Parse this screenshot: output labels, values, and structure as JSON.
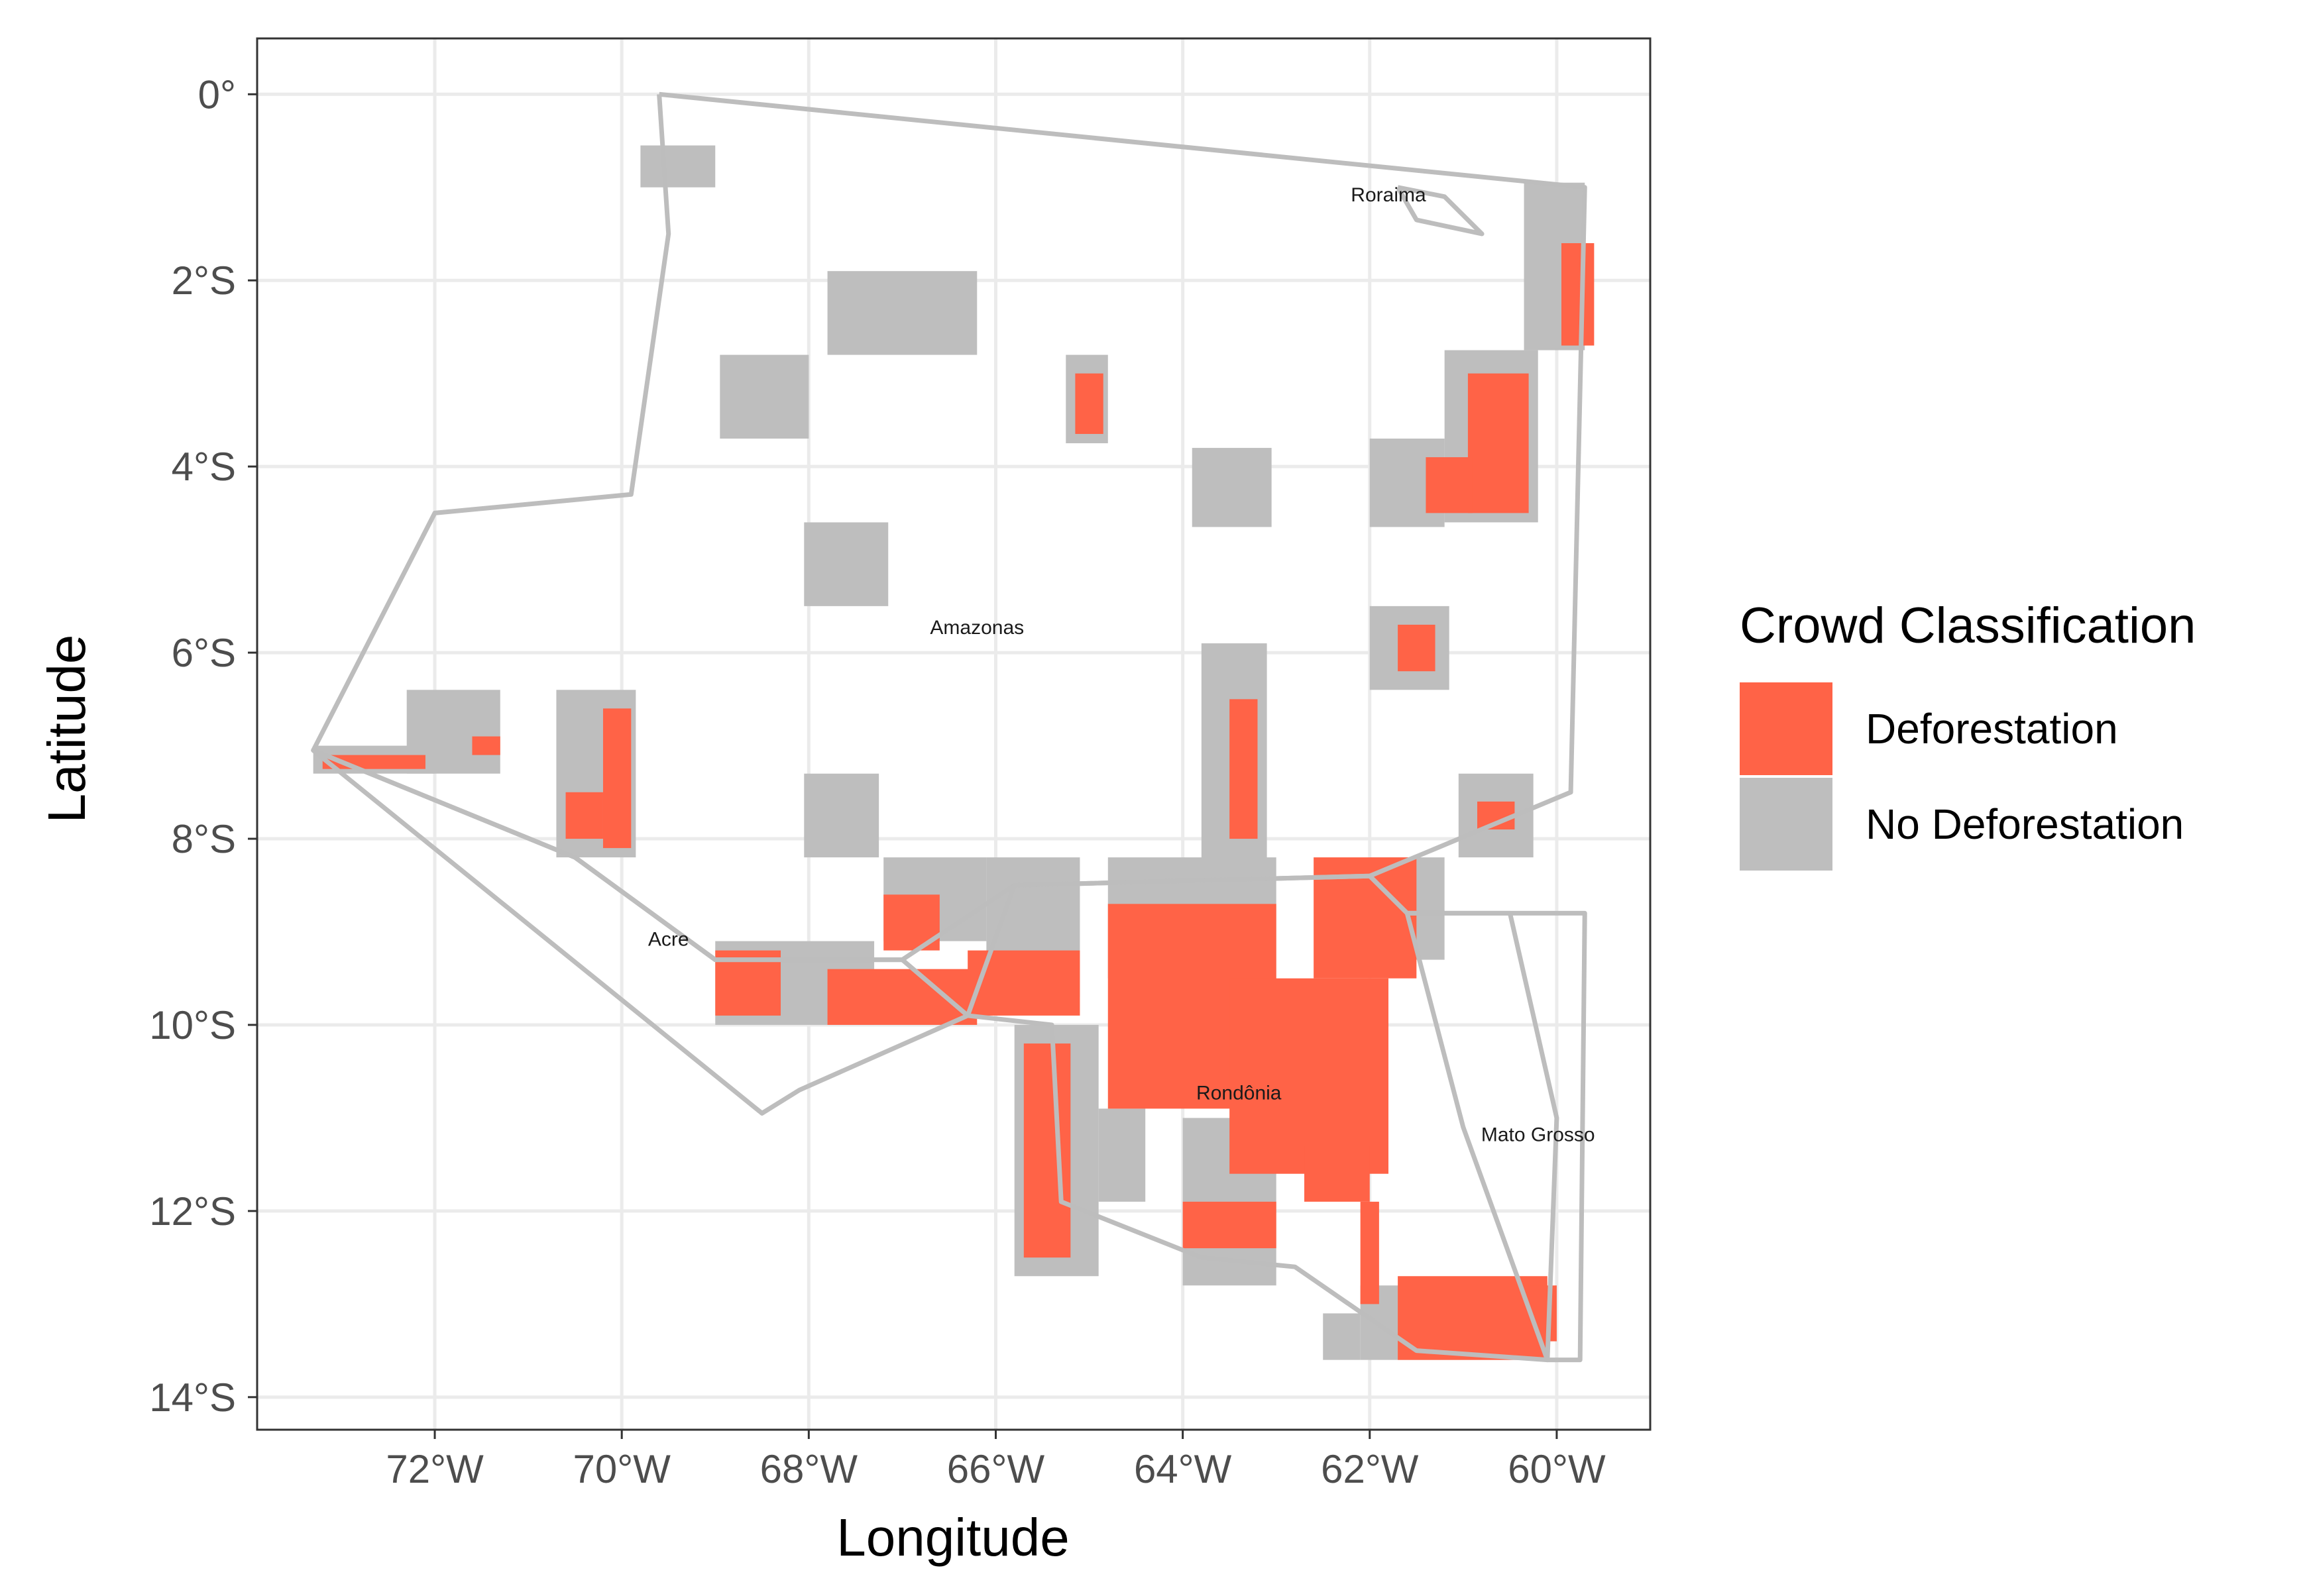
{
  "chart_data": {
    "type": "map",
    "xlabel": "Longitude",
    "ylabel": "Latitude",
    "xlim": [
      -73.9,
      -59.0
    ],
    "ylim": [
      -14.35,
      0.6
    ],
    "x_ticks": [
      {
        "value": -72,
        "label": "72°W"
      },
      {
        "value": -70,
        "label": "70°W"
      },
      {
        "value": -68,
        "label": "68°W"
      },
      {
        "value": -66,
        "label": "66°W"
      },
      {
        "value": -64,
        "label": "64°W"
      },
      {
        "value": -62,
        "label": "62°W"
      },
      {
        "value": -60,
        "label": "60°W"
      }
    ],
    "y_ticks": [
      {
        "value": 0,
        "label": "0°"
      },
      {
        "value": -2,
        "label": "2°S"
      },
      {
        "value": -4,
        "label": "4°S"
      },
      {
        "value": -6,
        "label": "6°S"
      },
      {
        "value": -8,
        "label": "8°S"
      },
      {
        "value": -10,
        "label": "10°S"
      },
      {
        "value": -12,
        "label": "12°S"
      },
      {
        "value": -14,
        "label": "14°S"
      }
    ],
    "grid": true,
    "legend": {
      "title": "Crowd Classification",
      "position": "right",
      "entries": [
        {
          "label": "Deforestation",
          "color": "#ff6347"
        },
        {
          "label": "No Deforestation",
          "color": "#bebebe"
        }
      ]
    },
    "place_labels": [
      {
        "name": "Roraima",
        "lon": -61.8,
        "lat": -1.15
      },
      {
        "name": "Amazonas",
        "lon": -66.2,
        "lat": -5.8
      },
      {
        "name": "Acre",
        "lon": -69.5,
        "lat": -9.15
      },
      {
        "name": "Rondônia",
        "lon": -63.4,
        "lat": -10.8
      },
      {
        "name": "Mato Grosso",
        "lon": -60.2,
        "lat": -11.25
      }
    ],
    "regions": [
      {
        "name": "Amazonas",
        "lon": [
          -69.6,
          -59.7,
          -59.85,
          -62,
          -65.8,
          -67.0,
          -69.0,
          -70.5,
          -73.3,
          -72.0,
          -69.9,
          -69.5,
          -69.6
        ],
        "lat": [
          0.0,
          -1.0,
          -7.5,
          -8.4,
          -8.5,
          -9.3,
          -9.3,
          -8.2,
          -7.05,
          -4.5,
          -4.3,
          -1.5,
          0.0
        ]
      },
      {
        "name": "Acre",
        "lon": [
          -73.3,
          -70.5,
          -69.0,
          -67.0,
          -66.3,
          -67.2,
          -68.1,
          -68.5,
          -73.3
        ],
        "lat": [
          -7.05,
          -8.2,
          -9.3,
          -9.3,
          -9.9,
          -10.3,
          -10.7,
          -10.95,
          -7.05
        ]
      },
      {
        "name": "Rondônia",
        "lon": [
          -65.8,
          -62.0,
          -61.6,
          -60.5,
          -60.0,
          -60.1,
          -61.5,
          -62.8,
          -63.8,
          -65.3,
          -65.4,
          -66.3,
          -65.8
        ],
        "lat": [
          -8.5,
          -8.4,
          -8.8,
          -8.8,
          -11.0,
          -13.6,
          -13.5,
          -12.6,
          -12.5,
          -11.9,
          -10.0,
          -9.9,
          -8.5
        ]
      },
      {
        "name": "Roraima",
        "lon": [
          -61.7,
          -61.5,
          -60.8,
          -61.2,
          -61.7
        ],
        "lat": [
          -1.0,
          -1.35,
          -1.5,
          -1.1,
          -1.0
        ]
      },
      {
        "name": "Mato Grosso",
        "lon": [
          -61.6,
          -59.7,
          -59.75,
          -60.1,
          -61.0,
          -61.6
        ],
        "lat": [
          -8.8,
          -8.8,
          -13.6,
          -13.6,
          -11.1,
          -8.8
        ]
      }
    ],
    "tiles": [
      {
        "lon": [
          -69.8,
          -69.0
        ],
        "lat": [
          -0.55,
          -1.0
        ],
        "class": "No Deforestation"
      },
      {
        "lon": [
          -67.8,
          -66.2
        ],
        "lat": [
          -1.9,
          -2.8
        ],
        "class": "No Deforestation"
      },
      {
        "lon": [
          -68.95,
          -68.0
        ],
        "lat": [
          -2.8,
          -3.7
        ],
        "class": "No Deforestation"
      },
      {
        "lon": [
          -65.25,
          -64.8
        ],
        "lat": [
          -2.8,
          -3.75
        ],
        "class": "No Deforestation"
      },
      {
        "lon": [
          -63.9,
          -63.05
        ],
        "lat": [
          -3.8,
          -4.65
        ],
        "class": "No Deforestation"
      },
      {
        "lon": [
          -62.0,
          -61.2
        ],
        "lat": [
          -3.7,
          -4.65
        ],
        "class": "No Deforestation"
      },
      {
        "lon": [
          -61.2,
          -60.2
        ],
        "lat": [
          -2.75,
          -4.6
        ],
        "class": "No Deforestation"
      },
      {
        "lon": [
          -60.35,
          -59.7
        ],
        "lat": [
          -0.95,
          -2.75
        ],
        "class": "No Deforestation"
      },
      {
        "lon": [
          -68.05,
          -67.15
        ],
        "lat": [
          -4.6,
          -5.5
        ],
        "class": "No Deforestation"
      },
      {
        "lon": [
          -62.0,
          -61.15
        ],
        "lat": [
          -5.5,
          -6.4
        ],
        "class": "No Deforestation"
      },
      {
        "lon": [
          -73.3,
          -72.0
        ],
        "lat": [
          -7.0,
          -7.3
        ],
        "class": "No Deforestation"
      },
      {
        "lon": [
          -72.3,
          -71.3
        ],
        "lat": [
          -6.4,
          -7.3
        ],
        "class": "No Deforestation"
      },
      {
        "lon": [
          -70.7,
          -69.85
        ],
        "lat": [
          -6.4,
          -8.2
        ],
        "class": "No Deforestation"
      },
      {
        "lon": [
          -68.05,
          -67.25
        ],
        "lat": [
          -7.3,
          -8.2
        ],
        "class": "No Deforestation"
      },
      {
        "lon": [
          -61.05,
          -60.25
        ],
        "lat": [
          -7.3,
          -8.2
        ],
        "class": "No Deforestation"
      },
      {
        "lon": [
          -67.2,
          -66.1
        ],
        "lat": [
          -8.2,
          -9.1
        ],
        "class": "No Deforestation"
      },
      {
        "lon": [
          -66.1,
          -65.1
        ],
        "lat": [
          -8.2,
          -9.7
        ],
        "class": "No Deforestation"
      },
      {
        "lon": [
          -64.8,
          -63.0
        ],
        "lat": [
          -8.2,
          -9.5
        ],
        "class": "No Deforestation"
      },
      {
        "lon": [
          -62.0,
          -61.2
        ],
        "lat": [
          -8.2,
          -9.3
        ],
        "class": "No Deforestation"
      },
      {
        "lon": [
          -69.0,
          -67.3
        ],
        "lat": [
          -9.1,
          -10.0
        ],
        "class": "No Deforestation"
      },
      {
        "lon": [
          -65.8,
          -64.9
        ],
        "lat": [
          -10.0,
          -12.7
        ],
        "class": "No Deforestation"
      },
      {
        "lon": [
          -64.9,
          -64.4
        ],
        "lat": [
          -10.9,
          -11.9
        ],
        "class": "No Deforestation"
      },
      {
        "lon": [
          -64.0,
          -63.0
        ],
        "lat": [
          -11.0,
          -12.8
        ],
        "class": "No Deforestation"
      },
      {
        "lon": [
          -62.1,
          -60.1
        ],
        "lat": [
          -12.8,
          -13.6
        ],
        "class": "No Deforestation"
      },
      {
        "lon": [
          -62.5,
          -62.1
        ],
        "lat": [
          -13.1,
          -13.6
        ],
        "class": "No Deforestation"
      },
      {
        "lon": [
          -63.8,
          -63.1
        ],
        "lat": [
          -5.9,
          -8.3
        ],
        "class": "No Deforestation"
      },
      {
        "lon": [
          -59.95,
          -59.6
        ],
        "lat": [
          -1.6,
          -2.7
        ],
        "class": "Deforestation"
      },
      {
        "lon": [
          -65.15,
          -64.85
        ],
        "lat": [
          -3.0,
          -3.65
        ],
        "class": "Deforestation"
      },
      {
        "lon": [
          -60.95,
          -60.3
        ],
        "lat": [
          -3.0,
          -4.5
        ],
        "class": "Deforestation"
      },
      {
        "lon": [
          -61.4,
          -60.9
        ],
        "lat": [
          -3.9,
          -4.5
        ],
        "class": "Deforestation"
      },
      {
        "lon": [
          -61.7,
          -61.3
        ],
        "lat": [
          -5.7,
          -6.2
        ],
        "class": "Deforestation"
      },
      {
        "lon": [
          -73.2,
          -72.1
        ],
        "lat": [
          -7.1,
          -7.25
        ],
        "class": "Deforestation"
      },
      {
        "lon": [
          -71.6,
          -71.3
        ],
        "lat": [
          -6.9,
          -7.1
        ],
        "class": "Deforestation"
      },
      {
        "lon": [
          -70.2,
          -69.9
        ],
        "lat": [
          -6.6,
          -8.1
        ],
        "class": "Deforestation"
      },
      {
        "lon": [
          -70.6,
          -70.2
        ],
        "lat": [
          -7.5,
          -8.0
        ],
        "class": "Deforestation"
      },
      {
        "lon": [
          -63.5,
          -63.2
        ],
        "lat": [
          -6.5,
          -8.0
        ],
        "class": "Deforestation"
      },
      {
        "lon": [
          -60.85,
          -60.45
        ],
        "lat": [
          -7.6,
          -7.9
        ],
        "class": "Deforestation"
      },
      {
        "lon": [
          -67.2,
          -66.6
        ],
        "lat": [
          -8.6,
          -9.2
        ],
        "class": "Deforestation"
      },
      {
        "lon": [
          -69.0,
          -68.3
        ],
        "lat": [
          -9.2,
          -9.9
        ],
        "class": "Deforestation"
      },
      {
        "lon": [
          -67.8,
          -66.2
        ],
        "lat": [
          -9.4,
          -10.0
        ],
        "class": "Deforestation"
      },
      {
        "lon": [
          -66.3,
          -65.1
        ],
        "lat": [
          -9.2,
          -9.9
        ],
        "class": "Deforestation"
      },
      {
        "lon": [
          -64.8,
          -63.0
        ],
        "lat": [
          -8.7,
          -10.9
        ],
        "class": "Deforestation"
      },
      {
        "lon": [
          -63.5,
          -61.8
        ],
        "lat": [
          -9.5,
          -11.6
        ],
        "class": "Deforestation"
      },
      {
        "lon": [
          -62.7,
          -62.0
        ],
        "lat": [
          -11.3,
          -11.9
        ],
        "class": "Deforestation"
      },
      {
        "lon": [
          -62.6,
          -61.5
        ],
        "lat": [
          -8.2,
          -9.5
        ],
        "class": "Deforestation"
      },
      {
        "lon": [
          -65.7,
          -65.2
        ],
        "lat": [
          -10.2,
          -12.5
        ],
        "class": "Deforestation"
      },
      {
        "lon": [
          -64.0,
          -63.0
        ],
        "lat": [
          -11.9,
          -12.4
        ],
        "class": "Deforestation"
      },
      {
        "lon": [
          -62.1,
          -61.9
        ],
        "lat": [
          -11.9,
          -13.0
        ],
        "class": "Deforestation"
      },
      {
        "lon": [
          -61.7,
          -60.1
        ],
        "lat": [
          -12.7,
          -13.6
        ],
        "class": "Deforestation"
      },
      {
        "lon": [
          -60.35,
          -60.0
        ],
        "lat": [
          -12.8,
          -13.4
        ],
        "class": "Deforestation"
      }
    ]
  }
}
